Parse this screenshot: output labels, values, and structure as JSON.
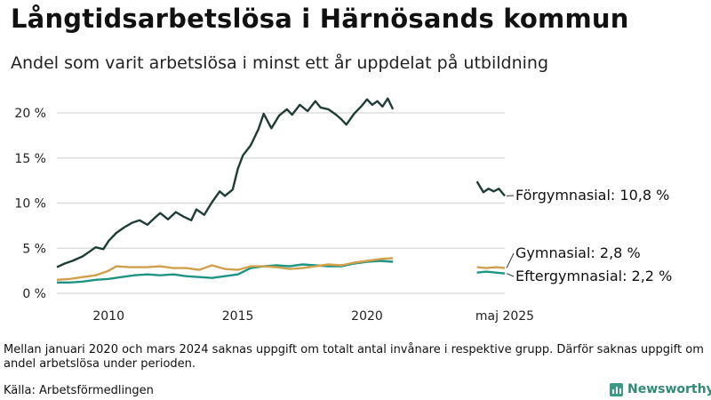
{
  "header": {
    "title": "Långtidsarbetslösa i Härnösands kommun",
    "subtitle": "Andel som varit arbetslösa i minst ett år uppdelat på utbildning"
  },
  "footer": {
    "note": "Mellan januari 2020 och mars 2024 saknas uppgift om totalt antal invånare i respektive grupp. Därför saknas uppgift om andel arbetslösa under perioden.",
    "source": "Källa: Arbetsförmedlingen",
    "brand": "Newsworthy"
  },
  "colors": {
    "forgymnasial": "#1f3d36",
    "gymnasial": "#d0a04a",
    "eftergymnasial": "#1f9484",
    "grid": "#d6d6d6",
    "brand": "#3d9a85"
  },
  "icons": {
    "brand": "newsworthy-logo-icon"
  },
  "chart_data": {
    "type": "line",
    "yTicks": [
      {
        "value": 0,
        "label": "0 %"
      },
      {
        "value": 5,
        "label": "5 %"
      },
      {
        "value": 10,
        "label": "10 %"
      },
      {
        "value": 15,
        "label": "15 %"
      },
      {
        "value": 20,
        "label": "20 %"
      }
    ],
    "xTicks": [
      {
        "value": 2010,
        "label": "2010"
      },
      {
        "value": 2015,
        "label": "2015"
      },
      {
        "value": 2020,
        "label": "2020"
      },
      {
        "value": 2025.33,
        "label": "maj 2025"
      }
    ],
    "ylim": [
      0,
      22
    ],
    "grid": true,
    "series": [
      {
        "name": "Förgymnasial",
        "label": "Förgymnasial: 10,8 %",
        "color": "#1f3d36",
        "segments": [
          [
            [
              2008.0,
              2.9
            ],
            [
              2008.3,
              3.3
            ],
            [
              2008.6,
              3.6
            ],
            [
              2009.0,
              4.1
            ],
            [
              2009.3,
              4.7
            ],
            [
              2009.5,
              5.1
            ],
            [
              2009.8,
              4.9
            ],
            [
              2010.0,
              5.8
            ],
            [
              2010.3,
              6.7
            ],
            [
              2010.6,
              7.3
            ],
            [
              2010.9,
              7.8
            ],
            [
              2011.2,
              8.1
            ],
            [
              2011.5,
              7.6
            ],
            [
              2011.8,
              8.4
            ],
            [
              2012.0,
              8.9
            ],
            [
              2012.3,
              8.2
            ],
            [
              2012.6,
              9.0
            ],
            [
              2012.9,
              8.5
            ],
            [
              2013.2,
              8.1
            ],
            [
              2013.4,
              9.3
            ],
            [
              2013.7,
              8.7
            ],
            [
              2014.0,
              10.1
            ],
            [
              2014.3,
              11.3
            ],
            [
              2014.5,
              10.8
            ],
            [
              2014.8,
              11.5
            ],
            [
              2015.0,
              13.8
            ],
            [
              2015.2,
              15.3
            ],
            [
              2015.5,
              16.4
            ],
            [
              2015.8,
              18.2
            ],
            [
              2016.0,
              19.9
            ],
            [
              2016.3,
              18.3
            ],
            [
              2016.6,
              19.7
            ],
            [
              2016.9,
              20.4
            ],
            [
              2017.1,
              19.8
            ],
            [
              2017.4,
              20.9
            ],
            [
              2017.7,
              20.2
            ],
            [
              2018.0,
              21.3
            ],
            [
              2018.2,
              20.6
            ],
            [
              2018.5,
              20.4
            ],
            [
              2018.8,
              19.8
            ],
            [
              2019.0,
              19.3
            ],
            [
              2019.2,
              18.7
            ],
            [
              2019.5,
              19.9
            ],
            [
              2019.8,
              20.8
            ],
            [
              2020.0,
              21.5
            ],
            [
              2020.2,
              20.9
            ],
            [
              2020.4,
              21.3
            ],
            [
              2020.6,
              20.7
            ],
            [
              2020.8,
              21.6
            ],
            [
              2021.0,
              20.4
            ]
          ],
          [
            [
              2024.25,
              12.4
            ],
            [
              2024.5,
              11.2
            ],
            [
              2024.7,
              11.6
            ],
            [
              2024.9,
              11.3
            ],
            [
              2025.1,
              11.6
            ],
            [
              2025.33,
              10.8
            ]
          ]
        ]
      },
      {
        "name": "Gymnasial",
        "label": "Gymnasial:  2,8 %",
        "color": "#d0a04a",
        "segments": [
          [
            [
              2008.0,
              1.5
            ],
            [
              2008.5,
              1.6
            ],
            [
              2009.0,
              1.8
            ],
            [
              2009.5,
              2.0
            ],
            [
              2010.0,
              2.5
            ],
            [
              2010.3,
              3.0
            ],
            [
              2010.8,
              2.9
            ],
            [
              2011.5,
              2.9
            ],
            [
              2012.0,
              3.0
            ],
            [
              2012.5,
              2.8
            ],
            [
              2013.0,
              2.8
            ],
            [
              2013.5,
              2.6
            ],
            [
              2014.0,
              3.1
            ],
            [
              2014.5,
              2.7
            ],
            [
              2015.0,
              2.6
            ],
            [
              2015.5,
              3.0
            ],
            [
              2016.0,
              3.0
            ],
            [
              2016.5,
              2.9
            ],
            [
              2017.0,
              2.7
            ],
            [
              2017.5,
              2.8
            ],
            [
              2018.0,
              3.0
            ],
            [
              2018.5,
              3.2
            ],
            [
              2019.0,
              3.1
            ],
            [
              2019.5,
              3.4
            ],
            [
              2020.0,
              3.6
            ],
            [
              2020.5,
              3.8
            ],
            [
              2021.0,
              3.9
            ]
          ],
          [
            [
              2024.25,
              2.9
            ],
            [
              2024.6,
              2.8
            ],
            [
              2025.0,
              2.9
            ],
            [
              2025.33,
              2.8
            ]
          ]
        ]
      },
      {
        "name": "Eftergymnasial",
        "label": "Eftergymnasial:  2,2 %",
        "color": "#1f9484",
        "segments": [
          [
            [
              2008.0,
              1.2
            ],
            [
              2008.5,
              1.2
            ],
            [
              2009.0,
              1.3
            ],
            [
              2009.5,
              1.5
            ],
            [
              2010.0,
              1.6
            ],
            [
              2010.5,
              1.8
            ],
            [
              2011.0,
              2.0
            ],
            [
              2011.5,
              2.1
            ],
            [
              2012.0,
              2.0
            ],
            [
              2012.5,
              2.1
            ],
            [
              2013.0,
              1.9
            ],
            [
              2013.5,
              1.8
            ],
            [
              2014.0,
              1.7
            ],
            [
              2014.5,
              1.9
            ],
            [
              2015.0,
              2.1
            ],
            [
              2015.5,
              2.8
            ],
            [
              2016.0,
              3.0
            ],
            [
              2016.5,
              3.1
            ],
            [
              2017.0,
              3.0
            ],
            [
              2017.5,
              3.2
            ],
            [
              2018.0,
              3.1
            ],
            [
              2018.5,
              3.0
            ],
            [
              2019.0,
              3.0
            ],
            [
              2019.5,
              3.3
            ],
            [
              2020.0,
              3.5
            ],
            [
              2020.5,
              3.6
            ],
            [
              2021.0,
              3.5
            ]
          ],
          [
            [
              2024.25,
              2.3
            ],
            [
              2024.6,
              2.4
            ],
            [
              2025.0,
              2.3
            ],
            [
              2025.33,
              2.2
            ]
          ]
        ]
      }
    ]
  }
}
